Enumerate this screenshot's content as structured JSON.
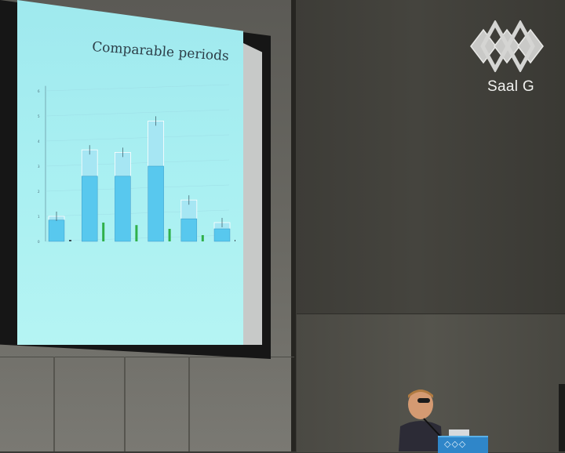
{
  "slide": {
    "title": "Comparable periods",
    "chart_data": {
      "type": "bar",
      "y_ticks": [
        "0",
        "1",
        "2",
        "3",
        "4",
        "5",
        "6"
      ],
      "groups": [
        {
          "bars": [
            {
              "total": 1.0,
              "lower": 0.85,
              "color": "blue"
            },
            {
              "total": 0.05,
              "color": "dark"
            }
          ]
        },
        {
          "bars": [
            {
              "total": 3.65,
              "lower": 2.6,
              "color": "blue"
            },
            {
              "total": 0.75,
              "color": "green"
            }
          ]
        },
        {
          "bars": [
            {
              "total": 3.55,
              "lower": 2.6,
              "color": "blue"
            },
            {
              "total": 0.65,
              "color": "green"
            }
          ]
        },
        {
          "bars": [
            {
              "total": 4.8,
              "lower": 3.0,
              "color": "blue"
            },
            {
              "total": 0.5,
              "color": "green"
            }
          ]
        },
        {
          "bars": [
            {
              "total": 1.65,
              "lower": 0.9,
              "color": "blue"
            },
            {
              "total": 0.25,
              "color": "green"
            }
          ]
        },
        {
          "bars": [
            {
              "total": 0.75,
              "lower": 0.5,
              "color": "blue"
            },
            {
              "total": 0.05,
              "color": "dark"
            }
          ]
        }
      ],
      "colors": {
        "blue": "#58c8ee",
        "blue_light": "#a6e6f3",
        "green": "#2fb04a",
        "dark": "#3a4d55"
      }
    }
  },
  "logo": {
    "label": "Saal G",
    "color": "#f1f1ef"
  },
  "lectern": {
    "color": "#2f86c9"
  }
}
